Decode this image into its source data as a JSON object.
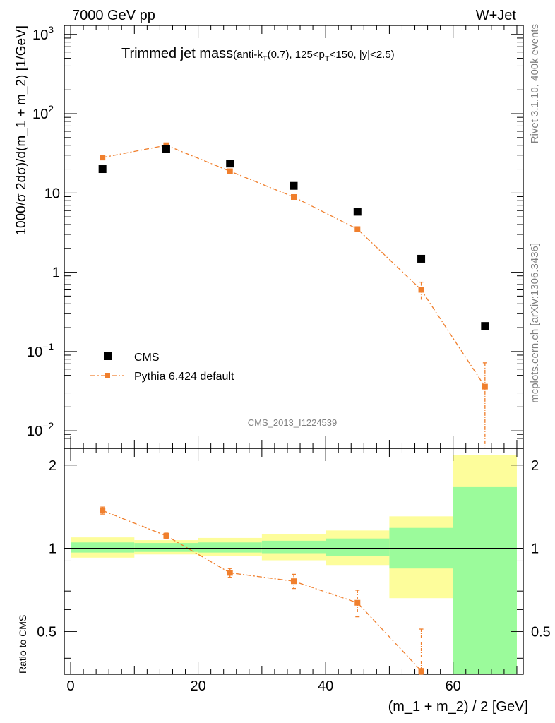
{
  "header": {
    "left": "7000 GeV pp",
    "right": "W+Jet"
  },
  "title": {
    "main": "Trimmed jet mass",
    "sub_pre": "(anti-k",
    "sub_sub1": "T",
    "sub_mid": "(0.7), 125<p",
    "sub_sub2": "T",
    "sub_post": "<150, |y|<2.5)"
  },
  "side_text": {
    "rivet": "Rivet 3.1.10,  400k events",
    "mcplots": "mcplots.cern.ch [arXiv:1306.3436]"
  },
  "analysis_id": "CMS_2013_I1224539",
  "colors": {
    "mc": "#f07f2d",
    "band_green": "#9bfb9b",
    "band_yellow": "#fdfd9b",
    "data": "#000000"
  },
  "chart_data": [
    {
      "type": "scatter",
      "panel": "main",
      "ylabel": "1000/σ 2dσ)/d(m_1 + m_2) [1/GeV]",
      "yscale": "log",
      "ylim": [
        0.006,
        1300
      ],
      "xlim": [
        -1,
        71
      ],
      "ytick_labels": [
        {
          "value": 0.01,
          "base": "10",
          "exp": "−2"
        },
        {
          "value": 0.1,
          "base": "10",
          "exp": "−1"
        },
        {
          "value": 1,
          "base": "1",
          "exp": ""
        },
        {
          "value": 10,
          "base": "10",
          "exp": ""
        },
        {
          "value": 100,
          "base": "10",
          "exp": "2"
        },
        {
          "value": 1000,
          "base": "10",
          "exp": "3"
        }
      ],
      "x": [
        5,
        15,
        25,
        35,
        45,
        55,
        65
      ],
      "series": [
        {
          "name": "CMS",
          "style": "square-markers",
          "values": [
            20,
            36,
            23.5,
            12.3,
            5.8,
            1.48,
            0.21
          ]
        },
        {
          "name": "Pythia 6.424 default",
          "style": "dash-dot-line-with-markers",
          "values": [
            28,
            40,
            18.8,
            8.9,
            3.5,
            0.6,
            0.036
          ],
          "err_low": [
            0,
            0,
            0,
            0,
            0.25,
            0.15,
            0.036
          ],
          "err_high": [
            0,
            0,
            0,
            0,
            0.25,
            0.15,
            0.036
          ]
        }
      ],
      "legend": {
        "placement": "bottom-left",
        "entries": [
          "CMS",
          "Pythia 6.424 default"
        ]
      }
    },
    {
      "type": "line",
      "panel": "ratio",
      "ylabel": "Ratio to CMS",
      "xlabel": "(m_1 + m_2) / 2 [GeV]",
      "xlim": [
        -1,
        71
      ],
      "ylim": [
        0.35,
        2.3
      ],
      "xtick_labels": [
        "0",
        "20",
        "40",
        "60"
      ],
      "xtick_values": [
        0,
        20,
        40,
        60
      ],
      "ytick_labels": [
        "0.5",
        "1",
        "2"
      ],
      "ytick_values": [
        0.5,
        1,
        2
      ],
      "bin_edges": [
        0,
        10,
        20,
        30,
        40,
        50,
        60,
        70
      ],
      "yellow_band_low": [
        0.925,
        0.95,
        0.94,
        0.905,
        0.87,
        0.66,
        0.35
      ],
      "yellow_band_high": [
        1.095,
        1.07,
        1.09,
        1.125,
        1.16,
        1.305,
        2.18
      ],
      "green_band_low": [
        0.965,
        0.97,
        0.965,
        0.96,
        0.935,
        0.845,
        0.35
      ],
      "green_band_high": [
        1.05,
        1.045,
        1.05,
        1.065,
        1.085,
        1.185,
        1.665
      ],
      "x": [
        5,
        15,
        25,
        35,
        45,
        55
      ],
      "series": [
        {
          "name": "Pythia 6.424 default",
          "values": [
            1.37,
            1.11,
            0.815,
            0.76,
            0.635,
            0.36
          ],
          "err_low": [
            0.04,
            0.025,
            0.03,
            0.045,
            0.07,
            0.15
          ],
          "err_high": [
            0.04,
            0.025,
            0.03,
            0.045,
            0.07,
            0.15
          ]
        }
      ]
    }
  ]
}
